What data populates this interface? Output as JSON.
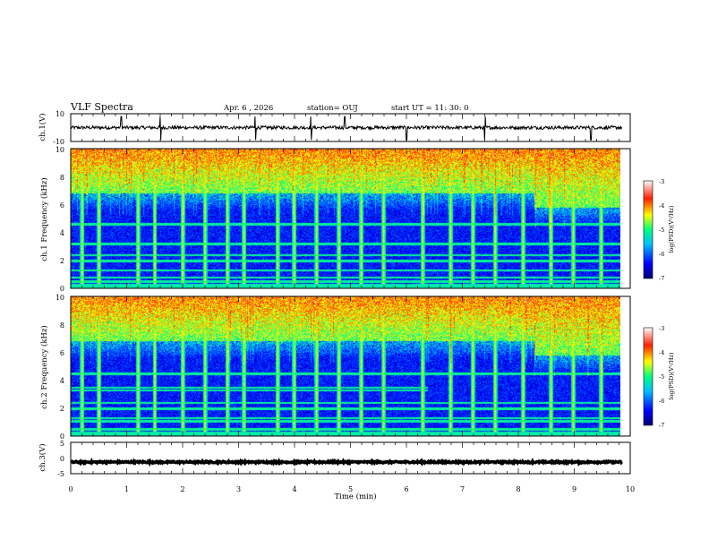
{
  "header": {
    "title": "VLF Spectra",
    "date": "Apr. 6 , 2026",
    "station": "station= OUJ",
    "start": "start UT = 11: 30: 0"
  },
  "colorbar": {
    "label": "log(PSD)(V²/Hz)",
    "ticks": [
      "-3",
      "-4",
      "-5",
      "-6",
      "-7"
    ]
  },
  "x_axis": {
    "label": "Time (min)",
    "ticks": [
      "0",
      "1",
      "2",
      "3",
      "4",
      "5",
      "6",
      "7",
      "8",
      "9",
      "10"
    ]
  },
  "chart_data": [
    {
      "type": "line",
      "name": "ch1-waveform",
      "ylabel": "ch.1(V)",
      "ylim": [
        -10,
        10
      ],
      "yticks": [
        "10",
        "-10"
      ],
      "x_range": [
        0,
        9.85
      ],
      "baseline": 0,
      "noise_amplitude": 1.2,
      "spike_times": [
        0.9,
        1.6,
        3.3,
        4.3,
        4.9,
        6.0,
        7.4,
        9.3
      ]
    },
    {
      "type": "heatmap",
      "name": "ch1-spectrogram",
      "ylabel": "ch.1 Frequency (kHz)",
      "ylim": [
        0,
        10
      ],
      "yticks": [
        "10",
        "8",
        "6",
        "4",
        "2",
        "0"
      ],
      "x_range": [
        0,
        9.85
      ],
      "colorscale_range": [
        -7,
        -3
      ],
      "background_cutoff_khz": 6.8,
      "cutoff_shift": {
        "after_min": 8.3,
        "to_khz": 5.8
      },
      "emission_bands_khz": [
        0.5,
        0.8,
        1.3,
        2.0,
        2.4,
        3.2,
        4.6
      ],
      "sferic_times": [
        0.2,
        0.5,
        1.2,
        1.5,
        2.0,
        2.4,
        2.8,
        3.1,
        3.7,
        4.0,
        4.4,
        4.8,
        5.2,
        5.6,
        6.3,
        6.8,
        7.2,
        7.6,
        8.1,
        8.6,
        9.0,
        9.5
      ]
    },
    {
      "type": "heatmap",
      "name": "ch2-spectrogram",
      "ylabel": "ch.2 Frequency (kHz)",
      "ylim": [
        0,
        10
      ],
      "yticks": [
        "10",
        "8",
        "6",
        "4",
        "2",
        "0"
      ],
      "x_range": [
        0,
        9.85
      ],
      "colorscale_range": [
        -7,
        -3
      ],
      "background_cutoff_khz": 6.8,
      "cutoff_shift": {
        "after_min": 8.3,
        "to_khz": 5.8
      },
      "emission_bands_khz": [
        0.5,
        1.1,
        1.3,
        2.0,
        2.4,
        3.3,
        3.5,
        4.5
      ],
      "band_end_min": 6.4,
      "sferic_times": [
        0.2,
        0.5,
        1.2,
        1.5,
        2.0,
        2.4,
        2.8,
        3.1,
        3.7,
        4.0,
        4.4,
        4.8,
        5.2,
        5.6,
        6.3,
        6.8,
        7.2,
        7.6,
        8.1,
        8.6,
        9.0,
        9.5
      ]
    },
    {
      "type": "line",
      "name": "ch3-waveform",
      "ylabel": "ch.3(V)",
      "ylim": [
        -5,
        5
      ],
      "yticks": [
        "5",
        "0",
        "-5"
      ],
      "x_range": [
        0,
        9.85
      ],
      "baseline": -1.3,
      "noise_amplitude": 0.25,
      "spike_times": []
    }
  ]
}
